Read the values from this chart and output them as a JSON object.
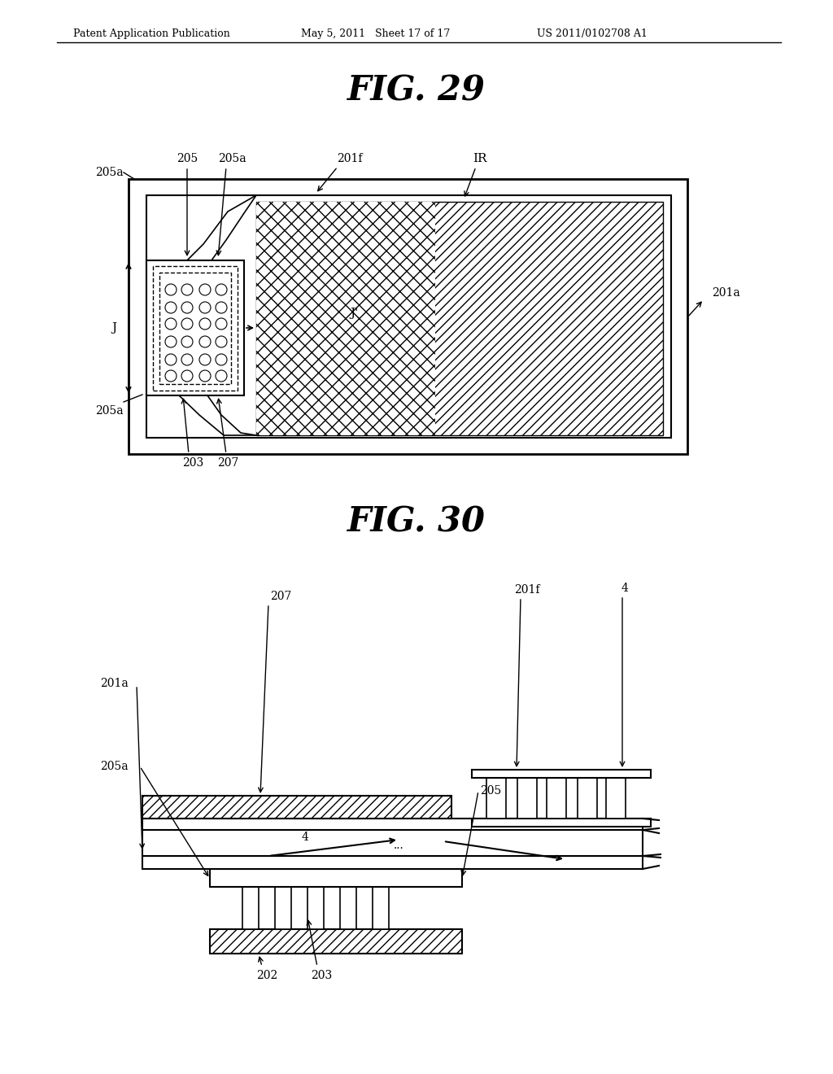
{
  "header_left": "Patent Application Publication",
  "header_mid": "May 5, 2011   Sheet 17 of 17",
  "header_right": "US 2011/0102708 A1",
  "fig29_title": "FIG. 29",
  "fig30_title": "FIG. 30",
  "bg_color": "#ffffff",
  "line_color": "#000000"
}
